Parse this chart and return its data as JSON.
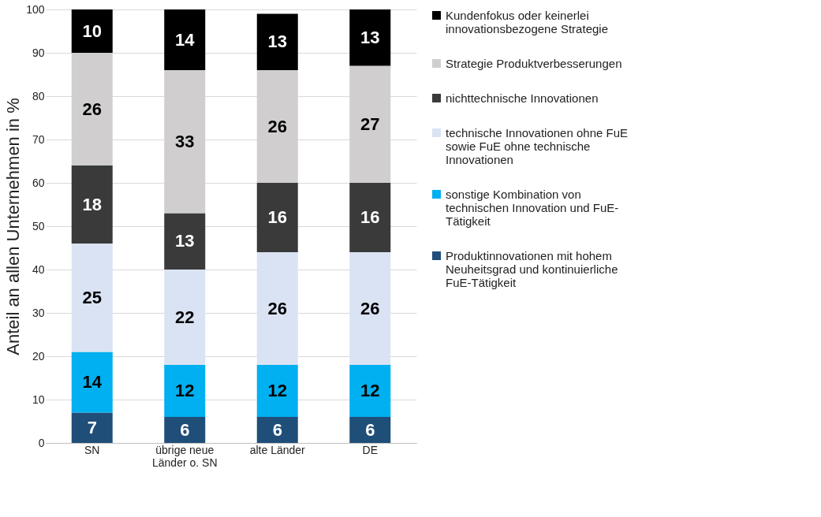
{
  "chart_data": {
    "type": "bar",
    "stacked": true,
    "ylabel": "Anteil an allen Unternehmen in %",
    "categories": [
      "SN",
      "übrige neue Länder o. SN",
      "alte Länder",
      "DE"
    ],
    "series": [
      {
        "name": "Produktinnovationen mit hohem Neuheitsgrad und kontinuierliche FuE-Tätigkeit",
        "color": "#1f4e79",
        "values": [
          7,
          6,
          6,
          6
        ]
      },
      {
        "name": "sonstige Kombination von technischen Innovation und FuE-Tätigkeit",
        "color": "#00b0f0",
        "values": [
          14,
          12,
          12,
          12
        ]
      },
      {
        "name": "technische Innovationen ohne FuE sowie FuE ohne technische Innovationen",
        "color": "#dae3f3",
        "values": [
          25,
          22,
          26,
          26
        ]
      },
      {
        "name": "nichttechnische Innovationen",
        "color": "#3a3a3a",
        "values": [
          18,
          13,
          16,
          16
        ]
      },
      {
        "name": "Strategie Produktverbesserungen",
        "color": "#d0cece",
        "values": [
          26,
          33,
          26,
          27
        ]
      },
      {
        "name": "Kundenfokus oder keinerlei innovationsbezogene Strategie",
        "color": "#000000",
        "values": [
          10,
          14,
          13,
          13
        ]
      }
    ],
    "ylim": [
      0,
      100
    ],
    "yticks": [
      0,
      10,
      20,
      30,
      40,
      50,
      60,
      70,
      80,
      90,
      100
    ],
    "grid": "y",
    "legend": "right",
    "data_labels": true
  }
}
